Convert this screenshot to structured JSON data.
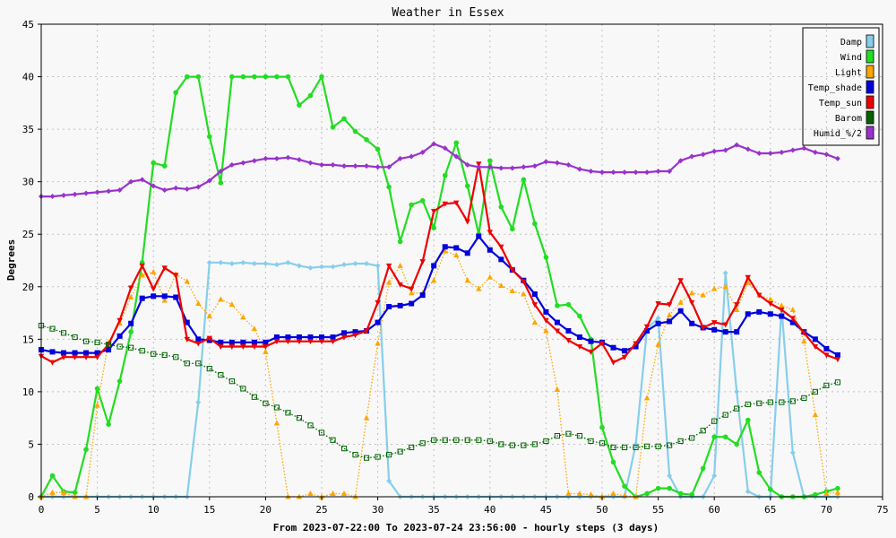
{
  "chart_data": {
    "type": "line",
    "title": "Weather in Essex",
    "xlabel": "From 2023-07-22:00 To 2023-07-24 23:56:00 - hourly steps (3 days)",
    "ylabel": "Degrees",
    "xlim": [
      0,
      75
    ],
    "ylim": [
      0,
      45
    ],
    "xticks": [
      0,
      5,
      10,
      15,
      20,
      25,
      30,
      35,
      40,
      45,
      50,
      55,
      60,
      65,
      70,
      75
    ],
    "yticks": [
      0,
      5,
      10,
      15,
      20,
      25,
      30,
      35,
      40,
      45
    ],
    "grid": true,
    "legend_position": "top-right",
    "x": [
      0,
      1,
      2,
      3,
      4,
      5,
      6,
      7,
      8,
      9,
      10,
      11,
      12,
      13,
      14,
      15,
      16,
      17,
      18,
      19,
      20,
      21,
      22,
      23,
      24,
      25,
      26,
      27,
      28,
      29,
      30,
      31,
      32,
      33,
      34,
      35,
      36,
      37,
      38,
      39,
      40,
      41,
      42,
      43,
      44,
      45,
      46,
      47,
      48,
      49,
      50,
      51,
      52,
      53,
      54,
      55,
      56,
      57,
      58,
      59,
      60,
      61,
      62,
      63,
      64,
      65,
      66,
      67,
      68,
      69,
      70,
      71
    ],
    "series": [
      {
        "name": "Damp",
        "color": "#87ceeb",
        "marker": "star",
        "style": "solid",
        "values": [
          0,
          0,
          0,
          0,
          0,
          0,
          0,
          0,
          0,
          0,
          0,
          0,
          0,
          0,
          9,
          22.3,
          22.3,
          22.2,
          22.3,
          22.2,
          22.2,
          22.1,
          22.3,
          22.0,
          21.8,
          21.9,
          21.9,
          22.1,
          22.2,
          22.2,
          22.0,
          1.5,
          0,
          0,
          0,
          0,
          0,
          0,
          0,
          0,
          0,
          0,
          0,
          0,
          0,
          0,
          0,
          0,
          0,
          0,
          0,
          0,
          0,
          5,
          16,
          17,
          2,
          0,
          0,
          0,
          2,
          21.3,
          10,
          0.5,
          0,
          0,
          18,
          4.2,
          0,
          0,
          0,
          0
        ]
      },
      {
        "name": "Wind",
        "color": "#22dd22",
        "marker": "circle",
        "style": "solid",
        "values": [
          0,
          2,
          0.5,
          0.4,
          4.5,
          10.3,
          6.9,
          11,
          15.7,
          22.3,
          31.8,
          31.5,
          38.5,
          40,
          40,
          34.3,
          29.9,
          40,
          40,
          40,
          40,
          40,
          40,
          37.3,
          38.2,
          40,
          35.2,
          36,
          34.8,
          34,
          33.1,
          29.5,
          24.3,
          27.8,
          28.2,
          25.6,
          30.6,
          33.7,
          29.6,
          25,
          32,
          27.6,
          25.5,
          30.2,
          26,
          22.8,
          18.2,
          18.3,
          17.2,
          15,
          6.6,
          3.3,
          1,
          0,
          0.3,
          0.8,
          0.8,
          0.3,
          0.2,
          2.7,
          5.7,
          5.7,
          5,
          7.3,
          2.3,
          0.7,
          0,
          0,
          0,
          0.2,
          0.5,
          0.8
        ]
      },
      {
        "name": "Light",
        "color": "#ffa500",
        "marker": "triangle",
        "style": "dotted",
        "values": [
          0,
          0.4,
          0.4,
          0,
          0,
          8.7,
          14.7,
          16.5,
          19,
          21.1,
          21.4,
          18.7,
          21.2,
          20.5,
          18.4,
          17.2,
          18.8,
          18.3,
          17.1,
          16,
          13.8,
          7,
          0,
          0,
          0.3,
          0,
          0.3,
          0.3,
          0,
          7.5,
          14.6,
          20.4,
          22,
          19.4,
          19.4,
          20.6,
          23.4,
          23,
          20.6,
          19.8,
          20.9,
          20.1,
          19.6,
          19.3,
          16.6,
          15.8,
          10.2,
          0.3,
          0.3,
          0.2,
          0,
          0.3,
          0.1,
          0,
          9.4,
          14.5,
          17.3,
          18.5,
          19.4,
          19.2,
          19.8,
          20,
          17.8,
          20.4,
          19.2,
          18.8,
          18.2,
          17.8,
          14.8,
          7.8,
          0.3,
          0.4
        ]
      },
      {
        "name": "Temp_shade",
        "color": "#0000dd",
        "marker": "square",
        "style": "solid",
        "values": [
          14,
          13.8,
          13.7,
          13.7,
          13.7,
          13.7,
          14,
          15.3,
          16.5,
          18.9,
          19.1,
          19.1,
          19,
          16.6,
          15,
          14.9,
          14.7,
          14.7,
          14.7,
          14.7,
          14.7,
          15.2,
          15.2,
          15.2,
          15.2,
          15.2,
          15.2,
          15.6,
          15.7,
          15.8,
          16.6,
          18.1,
          18.2,
          18.4,
          19.2,
          22,
          23.8,
          23.7,
          23.2,
          24.8,
          23.5,
          22.6,
          21.6,
          20.6,
          19.3,
          17.6,
          16.6,
          15.8,
          15.2,
          14.8,
          14.7,
          14.2,
          13.9,
          14.3,
          15.8,
          16.5,
          16.7,
          17.7,
          16.5,
          16.1,
          15.9,
          15.7,
          15.7,
          17.4,
          17.6,
          17.4,
          17.2,
          16.6,
          15.7,
          15,
          14.1,
          13.5
        ]
      },
      {
        "name": "Temp_sun",
        "color": "#ee0000",
        "marker": "triangle-down",
        "style": "solid",
        "values": [
          13.4,
          12.8,
          13.3,
          13.3,
          13.3,
          13.3,
          14.5,
          16.8,
          19.9,
          22,
          19.8,
          21.8,
          21.1,
          15,
          14.6,
          15.1,
          14.3,
          14.3,
          14.3,
          14.3,
          14.3,
          14.8,
          14.8,
          14.8,
          14.8,
          14.8,
          14.8,
          15.2,
          15.4,
          15.8,
          18.5,
          22,
          20.2,
          19.8,
          22.4,
          27.2,
          27.9,
          28,
          26.2,
          31.7,
          25.2,
          23.8,
          21.6,
          20.5,
          18.3,
          16.8,
          15.8,
          14.9,
          14.3,
          13.8,
          14.6,
          12.8,
          13.3,
          14.6,
          16.2,
          18.4,
          18.3,
          20.6,
          18.5,
          16.1,
          16.6,
          16.4,
          18.3,
          20.9,
          19.2,
          18.4,
          17.8,
          17,
          15.6,
          14.3,
          13.5,
          13.1
        ]
      },
      {
        "name": "Barom",
        "color": "#006400",
        "marker": "square-open",
        "style": "dotted",
        "values": [
          16.3,
          16,
          15.6,
          15.2,
          14.8,
          14.7,
          14.5,
          14.3,
          14.2,
          13.9,
          13.6,
          13.5,
          13.3,
          12.7,
          12.7,
          12.2,
          11.6,
          11,
          10.3,
          9.5,
          8.9,
          8.5,
          8,
          7.5,
          6.8,
          6.1,
          5.4,
          4.6,
          4,
          3.7,
          3.8,
          4,
          4.3,
          4.7,
          5.1,
          5.4,
          5.4,
          5.4,
          5.4,
          5.4,
          5.3,
          5,
          4.9,
          4.9,
          5,
          5.3,
          5.8,
          6,
          5.8,
          5.3,
          5.1,
          4.7,
          4.7,
          4.7,
          4.8,
          4.8,
          4.9,
          5.3,
          5.6,
          6.3,
          7.2,
          7.8,
          8.4,
          8.8,
          8.9,
          9,
          9,
          9.1,
          9.4,
          10,
          10.6,
          10.9
        ]
      },
      {
        "name": "Humid_%/2",
        "color": "#9932cc",
        "marker": "diamond",
        "style": "solid",
        "values": [
          28.6,
          28.6,
          28.7,
          28.8,
          28.9,
          29,
          29.1,
          29.2,
          30,
          30.2,
          29.6,
          29.2,
          29.4,
          29.3,
          29.5,
          30.1,
          31,
          31.6,
          31.8,
          32,
          32.2,
          32.2,
          32.3,
          32.1,
          31.8,
          31.6,
          31.6,
          31.5,
          31.5,
          31.5,
          31.4,
          31.4,
          32.2,
          32.4,
          32.8,
          33.6,
          33.2,
          32.4,
          31.6,
          31.4,
          31.4,
          31.3,
          31.3,
          31.4,
          31.5,
          31.9,
          31.8,
          31.6,
          31.2,
          31,
          30.9,
          30.9,
          30.9,
          30.9,
          30.9,
          31,
          31,
          32,
          32.4,
          32.6,
          32.9,
          33,
          33.5,
          33.1,
          32.7,
          32.7,
          32.8,
          33,
          33.2,
          32.8,
          32.6,
          32.2
        ]
      }
    ]
  }
}
